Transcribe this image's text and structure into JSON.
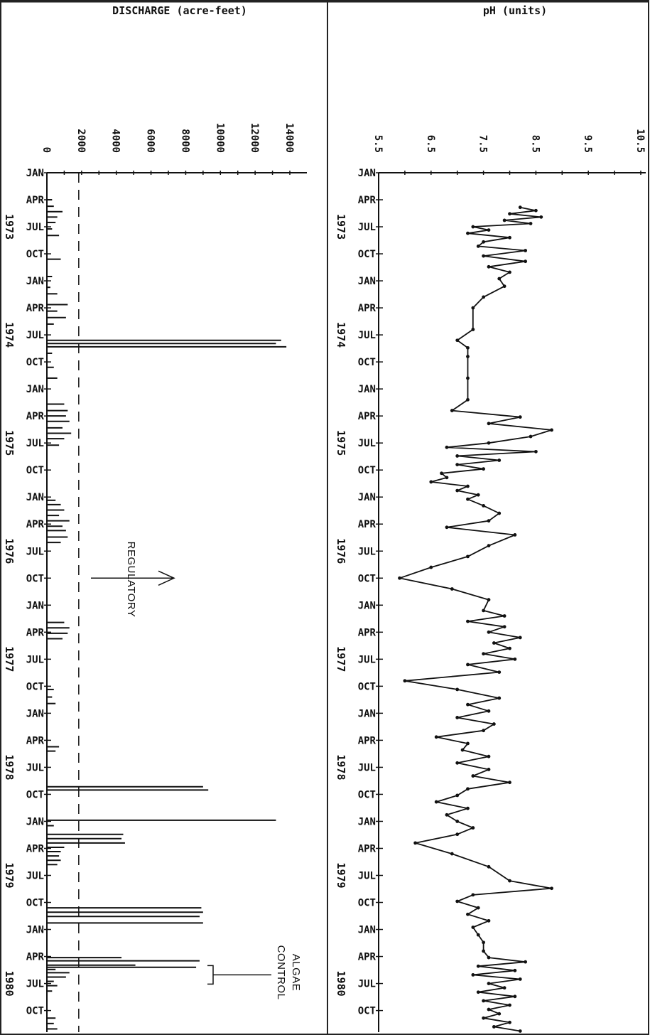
{
  "chart_data": [
    {
      "type": "bar",
      "orientation": "horizontal",
      "title": "DISCHARGE (acre-feet)",
      "x_ticks": [
        "0",
        "2000",
        "4000",
        "6000",
        "8000",
        "10000",
        "12000",
        "14000"
      ],
      "xlim": [
        0,
        14000
      ],
      "month_labels": [
        "JAN",
        "APR",
        "JUL",
        "OCT",
        "JAN",
        "APR",
        "JUL",
        "OCT",
        "JAN",
        "APR",
        "JUL",
        "OCT",
        "JAN",
        "APR",
        "JUL",
        "OCT",
        "JAN",
        "APR",
        "JUL",
        "OCT",
        "JAN",
        "APR",
        "JUL",
        "OCT",
        "JAN",
        "APR",
        "JUL",
        "OCT",
        "JAN",
        "APR",
        "JUL",
        "OCT"
      ],
      "year_labels": [
        "1973",
        "1974",
        "1975",
        "1976",
        "1977",
        "1978",
        "1979",
        "1980"
      ],
      "time_range": [
        1973.0,
        1980.95
      ],
      "reference_line": {
        "value": 2000,
        "style": "dashed"
      },
      "annotations": [
        {
          "text": "REGULATORY",
          "time": 1976.75,
          "points_to": 1800
        },
        {
          "text": "ALGAE CONTROL",
          "time": 1980.42
        }
      ],
      "series": [
        {
          "t": [
            1973.25,
            1973.31,
            1973.36,
            1973.41,
            1973.46,
            1973.52,
            1973.58,
            1973.8,
            1973.96,
            1974.06,
            1974.12,
            1974.22,
            1974.28,
            1974.34,
            1974.4,
            1974.55,
            1974.58,
            1974.61,
            1974.67,
            1974.8,
            1974.9,
            1975.14,
            1975.2,
            1975.25,
            1975.3,
            1975.36,
            1975.41,
            1975.46,
            1975.52,
            1976.03,
            1976.07,
            1976.12,
            1976.17,
            1976.22,
            1976.27,
            1976.31,
            1976.37,
            1976.42,
            1977.16,
            1977.21,
            1977.26,
            1977.31,
            1977.78,
            1977.85,
            1977.91,
            1978.31,
            1978.35,
            1978.68,
            1978.71,
            1978.99,
            1979.04,
            1979.12,
            1979.16,
            1979.2,
            1979.24,
            1979.28,
            1979.32,
            1979.36,
            1979.4,
            1979.8,
            1979.84,
            1979.88,
            1979.94,
            1980.26,
            1980.29,
            1980.33,
            1980.35,
            1980.37,
            1980.4,
            1980.44,
            1980.48,
            1980.52,
            1980.57,
            1980.82,
            1980.87,
            1980.92
          ],
          "values": [
            300,
            400,
            900,
            600,
            500,
            300,
            700,
            800,
            300,
            200,
            600,
            1200,
            600,
            1100,
            400,
            13500,
            13200,
            13800,
            300,
            400,
            600,
            1000,
            1200,
            1100,
            1300,
            900,
            1400,
            1000,
            700,
            500,
            800,
            1000,
            700,
            1300,
            900,
            1100,
            1200,
            800,
            1000,
            1300,
            1200,
            900,
            400,
            300,
            500,
            700,
            500,
            9000,
            9300,
            13200,
            400,
            4400,
            4300,
            4500,
            1000,
            800,
            700,
            800,
            600,
            8900,
            9000,
            8800,
            9000,
            4300,
            8800,
            5100,
            8600,
            500,
            1300,
            1100,
            400,
            600,
            300,
            500,
            400,
            600
          ]
        }
      ]
    },
    {
      "type": "line",
      "title": "pH (units)",
      "x_ticks": [
        "5.5",
        "6.5",
        "7.5",
        "8.5",
        "9.5",
        "10.5"
      ],
      "xlim": [
        5.5,
        10.5
      ],
      "month_labels": [
        "JAN",
        "APR",
        "JUL",
        "OCT",
        "JAN",
        "APR",
        "JUL",
        "OCT",
        "JAN",
        "APR",
        "JUL",
        "OCT",
        "JAN",
        "APR",
        "JUL",
        "OCT",
        "JAN",
        "APR",
        "JUL",
        "OCT",
        "JAN",
        "APR",
        "JUL",
        "OCT",
        "JAN",
        "APR",
        "JUL",
        "OCT",
        "JAN",
        "APR",
        "JUL",
        "OCT"
      ],
      "year_labels": [
        "1973",
        "1974",
        "1975",
        "1976",
        "1977",
        "1978",
        "1979",
        "1980"
      ],
      "time_range": [
        1973.0,
        1980.95
      ],
      "series": [
        {
          "t": [
            1973.32,
            1973.35,
            1973.38,
            1973.41,
            1973.44,
            1973.47,
            1973.5,
            1973.53,
            1973.56,
            1973.6,
            1973.64,
            1973.68,
            1973.72,
            1973.77,
            1973.82,
            1973.87,
            1973.92,
            1973.98,
            1974.05,
            1974.15,
            1974.25,
            1974.45,
            1974.55,
            1974.62,
            1974.7,
            1974.9,
            1975.1,
            1975.2,
            1975.26,
            1975.32,
            1975.38,
            1975.44,
            1975.5,
            1975.54,
            1975.58,
            1975.62,
            1975.66,
            1975.7,
            1975.74,
            1975.78,
            1975.82,
            1975.86,
            1975.9,
            1975.94,
            1975.98,
            1976.02,
            1976.08,
            1976.15,
            1976.22,
            1976.28,
            1976.35,
            1976.45,
            1976.55,
            1976.65,
            1976.75,
            1976.85,
            1976.95,
            1977.05,
            1977.1,
            1977.15,
            1977.2,
            1977.25,
            1977.3,
            1977.35,
            1977.4,
            1977.45,
            1977.5,
            1977.55,
            1977.62,
            1977.7,
            1977.78,
            1977.86,
            1977.92,
            1977.98,
            1978.04,
            1978.1,
            1978.16,
            1978.22,
            1978.28,
            1978.34,
            1978.4,
            1978.46,
            1978.52,
            1978.58,
            1978.64,
            1978.7,
            1978.76,
            1978.82,
            1978.88,
            1978.94,
            1979.0,
            1979.06,
            1979.12,
            1979.2,
            1979.3,
            1979.42,
            1979.55,
            1979.62,
            1979.68,
            1979.74,
            1979.8,
            1979.86,
            1979.92,
            1979.98,
            1980.05,
            1980.12,
            1980.2,
            1980.26,
            1980.3,
            1980.34,
            1980.38,
            1980.42,
            1980.46,
            1980.5,
            1980.54,
            1980.58,
            1980.62,
            1980.66,
            1980.7,
            1980.74,
            1980.78,
            1980.82,
            1980.86,
            1980.9,
            1980.94
          ],
          "values": [
            8.2,
            8.5,
            8.0,
            8.6,
            7.9,
            8.4,
            7.3,
            7.6,
            7.2,
            8.0,
            7.5,
            7.4,
            8.3,
            7.5,
            8.3,
            7.6,
            8.0,
            7.8,
            7.9,
            7.5,
            7.3,
            7.3,
            7.0,
            7.2,
            7.2,
            7.2,
            7.2,
            6.9,
            8.2,
            7.6,
            8.8,
            8.4,
            7.6,
            6.8,
            8.5,
            7.0,
            7.8,
            7.0,
            7.5,
            6.7,
            6.8,
            6.5,
            7.2,
            7.0,
            7.4,
            7.2,
            7.5,
            7.8,
            7.6,
            6.8,
            8.1,
            7.6,
            7.2,
            6.5,
            5.9,
            6.9,
            7.6,
            7.5,
            7.9,
            7.2,
            7.9,
            7.6,
            8.2,
            7.7,
            8.0,
            7.5,
            8.1,
            7.2,
            7.8,
            6.0,
            7.0,
            7.8,
            7.2,
            7.6,
            7.0,
            7.7,
            7.5,
            6.6,
            7.2,
            7.1,
            7.6,
            7.0,
            7.6,
            7.3,
            8.0,
            7.2,
            7.0,
            6.6,
            7.2,
            6.8,
            7.0,
            7.3,
            7.0,
            6.2,
            6.9,
            7.6,
            8.0,
            8.8,
            7.3,
            7.0,
            7.4,
            7.2,
            7.6,
            7.3,
            7.4,
            7.5,
            7.5,
            7.6,
            8.3,
            7.4,
            8.1,
            7.3,
            8.2,
            7.6,
            7.9,
            7.4,
            8.1,
            7.5,
            8.0,
            7.6,
            7.8,
            7.5,
            8.0,
            7.7,
            8.2
          ]
        }
      ]
    }
  ]
}
